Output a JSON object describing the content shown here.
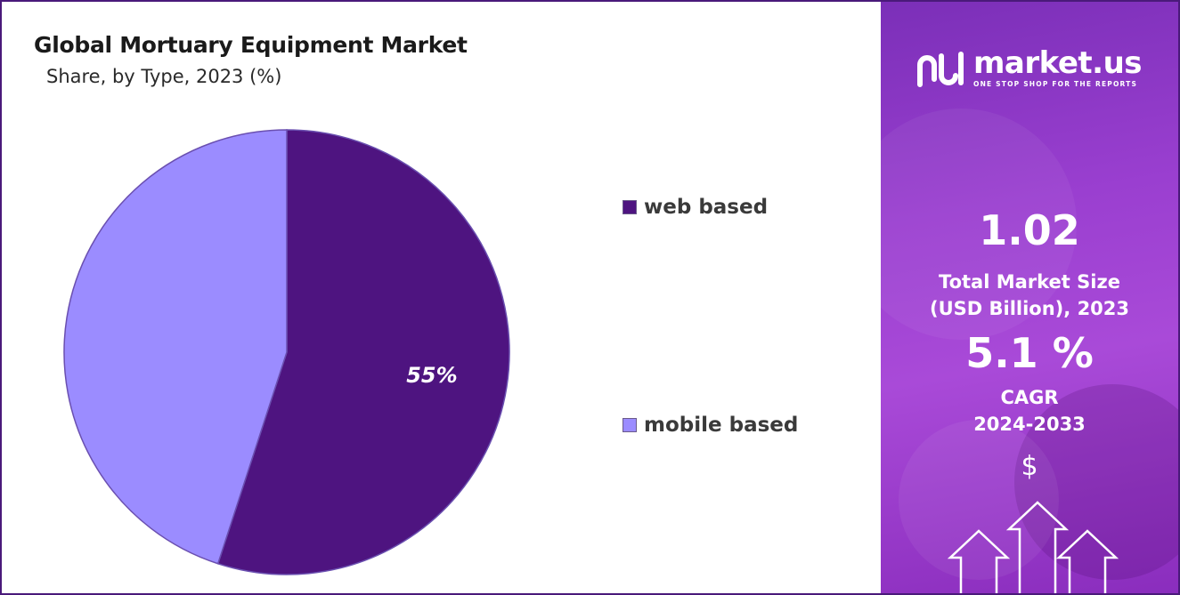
{
  "chart_data": {
    "type": "pie",
    "title": "Global Mortuary Equipment Market",
    "subtitle": "Share, by Type, 2023 (%)",
    "slices": [
      {
        "label": "web based",
        "value": 55,
        "color": "#4e1480",
        "data_label": "55%"
      },
      {
        "label": "mobile based",
        "value": 45,
        "color": "#9b8cff",
        "data_label": ""
      }
    ],
    "legend_position": "right"
  },
  "side_panel": {
    "brand_name": "market.us",
    "brand_tagline": "ONE STOP SHOP FOR THE REPORTS",
    "market_size_value": "1.02",
    "market_size_label_line1": "Total Market Size",
    "market_size_label_line2": "(USD Billion), 2023",
    "cagr_value": "5.1 %",
    "cagr_label_line1": "CAGR",
    "cagr_label_line2": "2024-2033",
    "currency_symbol": "$",
    "icons": [
      "logo-icon",
      "dollar-icon",
      "up-arrows-icon"
    ]
  },
  "colors": {
    "accent_dark": "#4e1480",
    "accent_light": "#9b8cff",
    "panel_purple": "#9a3fd0"
  }
}
